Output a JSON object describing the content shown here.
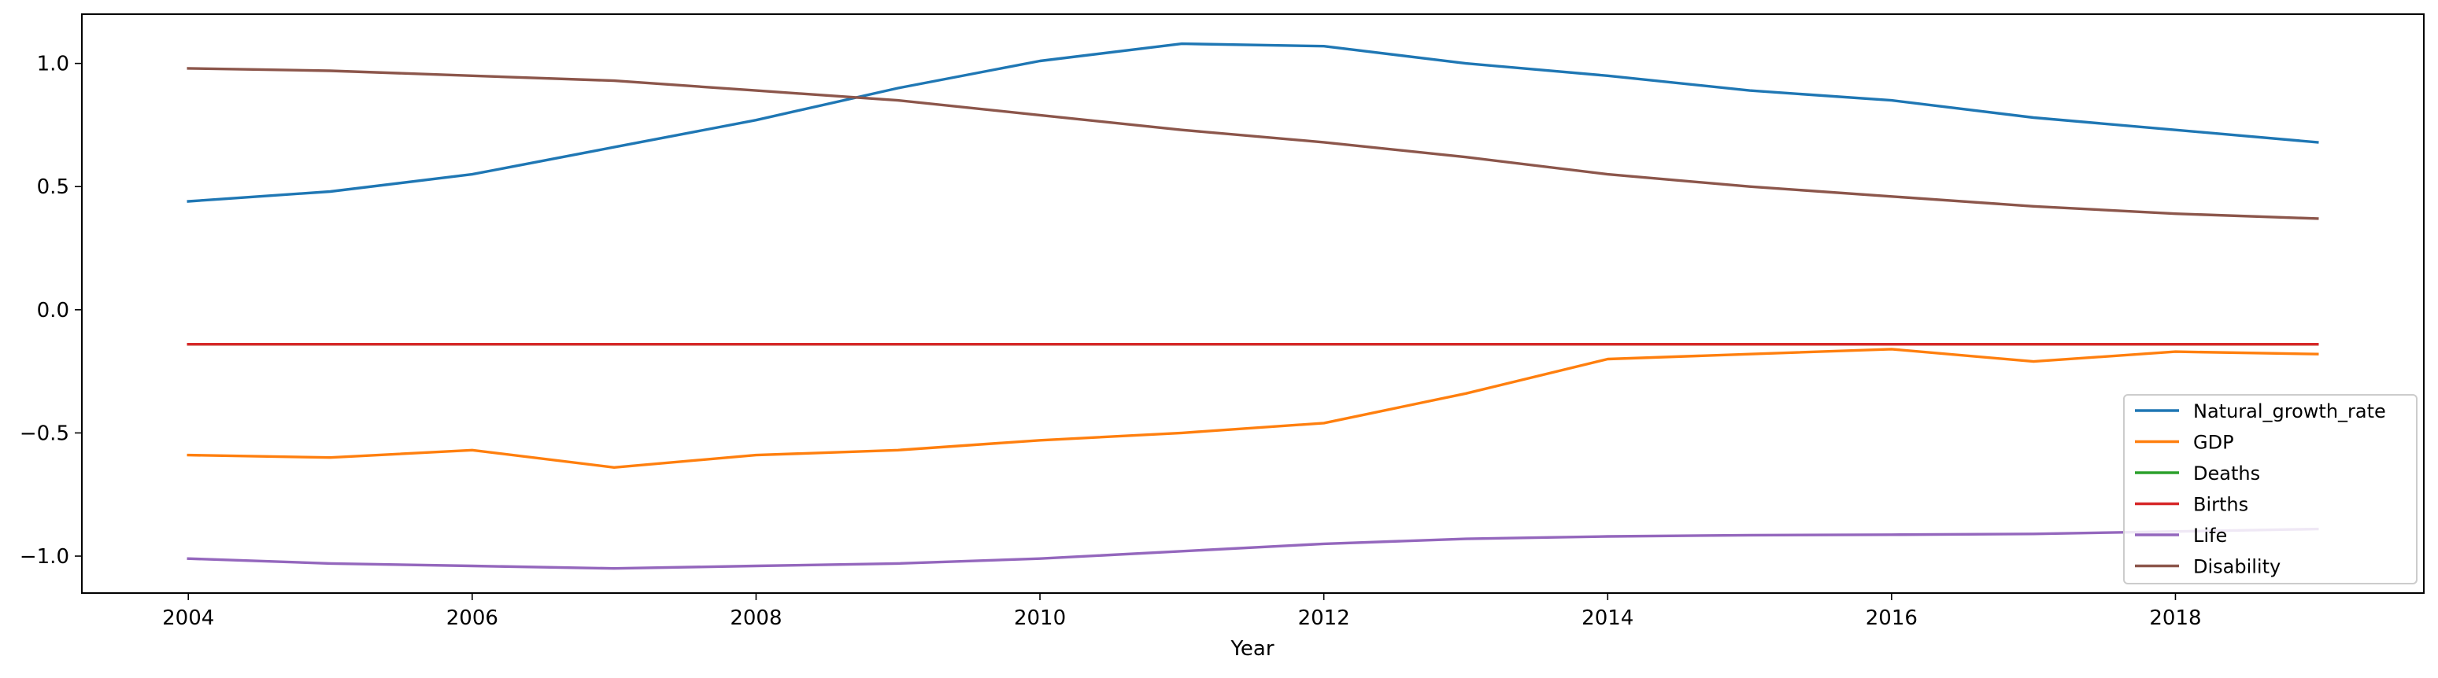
{
  "chart_data": {
    "type": "line",
    "title": "",
    "xlabel": "Year",
    "ylabel": "",
    "xlim": [
      2003.25,
      2019.75
    ],
    "ylim": [
      -1.15,
      1.2
    ],
    "grid": false,
    "legend_position": "lower-right",
    "x": [
      2004,
      2005,
      2006,
      2007,
      2008,
      2009,
      2010,
      2011,
      2012,
      2013,
      2014,
      2015,
      2016,
      2017,
      2018,
      2019
    ],
    "xticks": [
      2004,
      2006,
      2008,
      2010,
      2012,
      2014,
      2016,
      2018
    ],
    "xtick_labels": [
      "2004",
      "2006",
      "2008",
      "2010",
      "2012",
      "2014",
      "2016",
      "2018"
    ],
    "yticks": [
      -1.0,
      -0.5,
      0.0,
      0.5,
      1.0
    ],
    "ytick_labels": [
      "−1.0",
      "−0.5",
      "0.0",
      "0.5",
      "1.0"
    ],
    "series": [
      {
        "name": "Natural_growth_rate",
        "color": "#1f77b4",
        "values": [
          0.44,
          0.48,
          0.55,
          0.66,
          0.77,
          0.9,
          1.01,
          1.08,
          1.07,
          1.0,
          0.95,
          0.89,
          0.85,
          0.78,
          0.73,
          0.68
        ]
      },
      {
        "name": "GDP",
        "color": "#ff7f0e",
        "values": [
          -0.59,
          -0.6,
          -0.57,
          -0.64,
          -0.59,
          -0.57,
          -0.53,
          -0.5,
          -0.46,
          -0.34,
          -0.2,
          -0.18,
          -0.16,
          -0.21,
          -0.17,
          -0.18
        ]
      },
      {
        "name": "Deaths",
        "color": "#2ca02c",
        "values": [
          -0.14,
          -0.14,
          -0.14,
          -0.14,
          -0.14,
          -0.14,
          -0.14,
          -0.14,
          -0.14,
          -0.14,
          -0.14,
          -0.14,
          -0.14,
          -0.14,
          -0.14,
          -0.14
        ]
      },
      {
        "name": "Births",
        "color": "#d62728",
        "values": [
          -0.14,
          -0.14,
          -0.14,
          -0.14,
          -0.14,
          -0.14,
          -0.14,
          -0.14,
          -0.14,
          -0.14,
          -0.14,
          -0.14,
          -0.14,
          -0.14,
          -0.14,
          -0.14
        ]
      },
      {
        "name": "Life",
        "color": "#9467bd",
        "values": [
          -1.01,
          -1.03,
          -1.04,
          -1.05,
          -1.04,
          -1.03,
          -1.01,
          -0.98,
          -0.95,
          -0.93,
          -0.92,
          -0.915,
          -0.913,
          -0.91,
          -0.9,
          -0.89
        ]
      },
      {
        "name": "Disability",
        "color": "#8c564b",
        "values": [
          0.98,
          0.97,
          0.95,
          0.93,
          0.89,
          0.85,
          0.79,
          0.73,
          0.68,
          0.62,
          0.55,
          0.5,
          0.46,
          0.42,
          0.39,
          0.37
        ]
      }
    ]
  }
}
